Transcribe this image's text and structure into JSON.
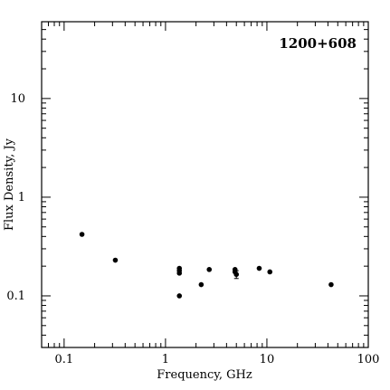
{
  "chart_data": {
    "type": "scatter",
    "title": "1200+608",
    "xlabel": "Frequency, GHz",
    "ylabel": "Flux Density, Jy",
    "xscale": "log",
    "yscale": "log",
    "xlim": [
      0.06,
      100
    ],
    "ylim": [
      0.03,
      60
    ],
    "grid": false,
    "legend": "none",
    "x_ticks": [
      {
        "value": 0.1,
        "label": "0.1"
      },
      {
        "value": 1,
        "label": "1"
      },
      {
        "value": 10,
        "label": "10"
      },
      {
        "value": 100,
        "label": "100"
      }
    ],
    "y_ticks": [
      {
        "value": 0.1,
        "label": "0.1"
      },
      {
        "value": 1,
        "label": "1"
      },
      {
        "value": 10,
        "label": "10"
      }
    ],
    "points": [
      {
        "x": 0.15,
        "y": 0.42
      },
      {
        "x": 0.32,
        "y": 0.23
      },
      {
        "x": 1.37,
        "y": 0.19
      },
      {
        "x": 1.37,
        "y": 0.18
      },
      {
        "x": 1.37,
        "y": 0.17
      },
      {
        "x": 1.37,
        "y": 0.1
      },
      {
        "x": 2.25,
        "y": 0.13
      },
      {
        "x": 2.7,
        "y": 0.185
      },
      {
        "x": 4.85,
        "y": 0.185
      },
      {
        "x": 4.85,
        "y": 0.175
      },
      {
        "x": 5.0,
        "y": 0.165,
        "yerr": 0.015
      },
      {
        "x": 8.4,
        "y": 0.19
      },
      {
        "x": 10.7,
        "y": 0.175
      },
      {
        "x": 43,
        "y": 0.13
      }
    ],
    "marker_color": "#000000"
  }
}
